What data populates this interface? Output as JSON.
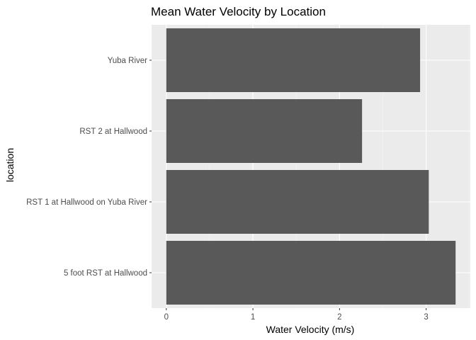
{
  "chart_data": {
    "type": "bar",
    "orientation": "horizontal",
    "title": "Mean Water Velocity by Location",
    "xlabel": "Water Velocity (m/s)",
    "ylabel": "location",
    "categories": [
      "Yuba River",
      "RST 2 at Hallwood",
      "RST 1 at Hallwood on Yuba River",
      "5 foot RST at Hallwood"
    ],
    "values": [
      2.93,
      2.26,
      3.03,
      3.34
    ],
    "xlim": [
      -0.17,
      3.51
    ],
    "xticks": [
      "0",
      "1",
      "2",
      "3"
    ],
    "grid": true,
    "legend": "none",
    "colors": {
      "bar": "#595959",
      "panel": "#ebebeb",
      "grid_major": "#ffffff",
      "grid_minor": "#f5f5f5",
      "tick": "#333333"
    }
  }
}
